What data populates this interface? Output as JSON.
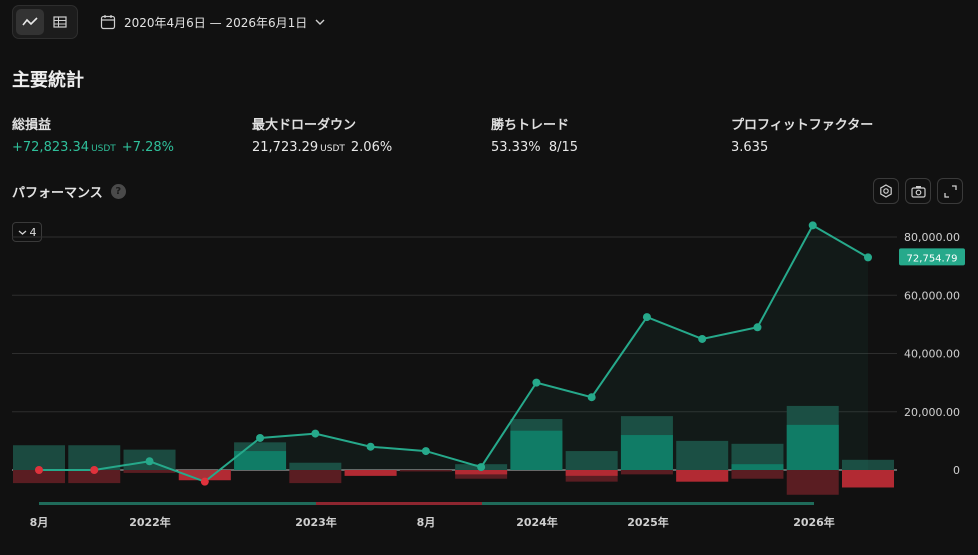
{
  "toolbar": {
    "chart_view_icon": "line-chart-icon",
    "table_view_icon": "table-icon",
    "date_range": "2020年4月6日 — 2026年6月1日"
  },
  "section_title": "主要統計",
  "stats": {
    "total_pnl": {
      "label": "総損益",
      "value": "+72,823.34",
      "unit": "USDT",
      "percent": "+7.28%"
    },
    "max_drawdown": {
      "label": "最大ドローダウン",
      "value": "21,723.29",
      "unit": "USDT",
      "percent": "2.06%"
    },
    "win_trades": {
      "label": "勝ちトレード",
      "value": "53.33%",
      "count": "8/15"
    },
    "profit_factor": {
      "label": "プロフィットファクター",
      "value": "3.635"
    }
  },
  "performance": {
    "title": "パフォーマンス",
    "help": "?",
    "dropdown_value": "4",
    "icons": [
      "settings-icon",
      "camera-icon",
      "fullscreen-icon"
    ]
  },
  "colors": {
    "accent": "#26a98b",
    "loss": "#e0323c",
    "bg": "#111111"
  },
  "chart_data": {
    "type": "line",
    "y_ticks": [
      "80,000.00",
      "60,000.00",
      "40,000.00",
      "20,000.00",
      "0"
    ],
    "ylim": [
      0,
      80000
    ],
    "current_value_label": "72,754.79",
    "x_tick_labels": [
      "8月",
      "2022年",
      "2023年",
      "8月",
      "2024年",
      "2025年",
      "2026年"
    ],
    "equity": [
      0,
      0,
      3000,
      -4000,
      11000,
      12500,
      8000,
      6500,
      1000,
      30000,
      25000,
      52500,
      45000,
      49000,
      84000,
      73000
    ],
    "run_up": [
      8500,
      8500,
      7000,
      0,
      9500,
      2500,
      0,
      0,
      2000,
      17500,
      6500,
      18500,
      10000,
      9000,
      22000,
      3500
    ],
    "run_up_solid": [
      0,
      0,
      0,
      0,
      6500,
      0,
      0,
      0,
      0,
      13500,
      0,
      12000,
      0,
      2000,
      15500,
      0
    ],
    "drawdown": [
      -4500,
      -4500,
      -1000,
      -3500,
      0,
      -4500,
      -2000,
      -500,
      -3000,
      0,
      -4000,
      -1500,
      -4000,
      -3000,
      -8500,
      -6000
    ],
    "drawdown_solid": [
      0,
      0,
      0,
      -3500,
      0,
      0,
      -2000,
      0,
      -1500,
      0,
      -2000,
      0,
      -4000,
      0,
      0,
      -6000
    ]
  }
}
